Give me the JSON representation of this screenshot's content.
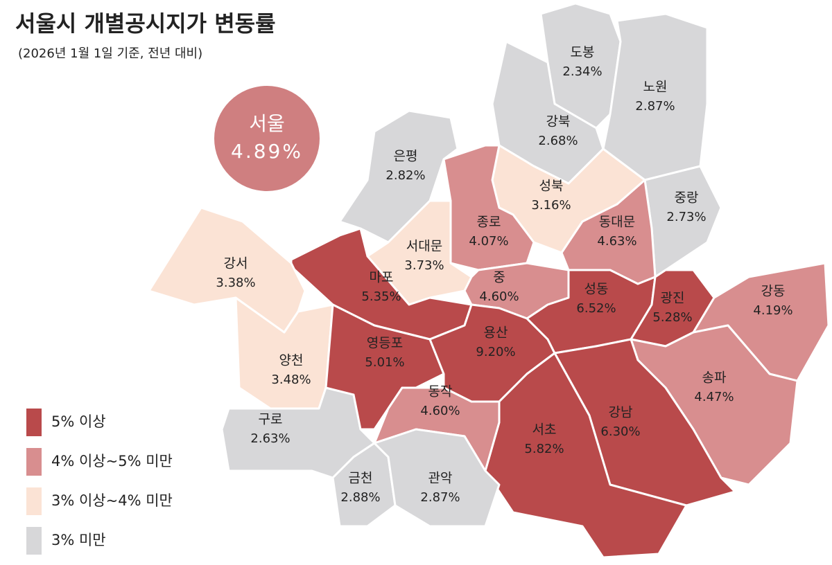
{
  "header": {
    "title": "서울시 개별공시지가 변동률",
    "subtitle": "(2026년 1월 1일 기준, 전년 대비)"
  },
  "summary": {
    "name": "서울",
    "value": "4.89%",
    "color": "#cf7f80"
  },
  "legend": [
    {
      "label": "5% 이상",
      "color": "#b94a4b"
    },
    {
      "label": "4% 이상~5% 미만",
      "color": "#d88e8f"
    },
    {
      "label": "3% 이상~4% 미만",
      "color": "#fbe3d5"
    },
    {
      "label": "3% 미만",
      "color": "#d7d7d9"
    }
  ],
  "districts": [
    {
      "name": "도봉",
      "value": "2.34%",
      "color": "#d7d7d9"
    },
    {
      "name": "노원",
      "value": "2.87%",
      "color": "#d7d7d9"
    },
    {
      "name": "강북",
      "value": "2.68%",
      "color": "#d7d7d9"
    },
    {
      "name": "은평",
      "value": "2.82%",
      "color": "#d7d7d9"
    },
    {
      "name": "성북",
      "value": "3.16%",
      "color": "#fbe3d5"
    },
    {
      "name": "종로",
      "value": "4.07%",
      "color": "#d88e8f"
    },
    {
      "name": "서대문",
      "value": "3.73%",
      "color": "#fbe3d5"
    },
    {
      "name": "중랑",
      "value": "2.73%",
      "color": "#d7d7d9"
    },
    {
      "name": "동대문",
      "value": "4.63%",
      "color": "#d88e8f"
    },
    {
      "name": "중",
      "value": "4.60%",
      "color": "#d88e8f"
    },
    {
      "name": "마포",
      "value": "5.35%",
      "color": "#b94a4b"
    },
    {
      "name": "강서",
      "value": "3.38%",
      "color": "#fbe3d5"
    },
    {
      "name": "양천",
      "value": "3.48%",
      "color": "#fbe3d5"
    },
    {
      "name": "구로",
      "value": "2.63%",
      "color": "#d7d7d9"
    },
    {
      "name": "영등포",
      "value": "5.01%",
      "color": "#b94a4b"
    },
    {
      "name": "용산",
      "value": "9.20%",
      "color": "#b94a4b"
    },
    {
      "name": "성동",
      "value": "6.52%",
      "color": "#b94a4b"
    },
    {
      "name": "광진",
      "value": "5.28%",
      "color": "#b94a4b"
    },
    {
      "name": "강동",
      "value": "4.19%",
      "color": "#d88e8f"
    },
    {
      "name": "송파",
      "value": "4.47%",
      "color": "#d88e8f"
    },
    {
      "name": "강남",
      "value": "6.30%",
      "color": "#b94a4b"
    },
    {
      "name": "서초",
      "value": "5.82%",
      "color": "#b94a4b"
    },
    {
      "name": "동작",
      "value": "4.60%",
      "color": "#d88e8f"
    },
    {
      "name": "금천",
      "value": "2.88%",
      "color": "#d7d7d9"
    },
    {
      "name": "관악",
      "value": "2.87%",
      "color": "#d7d7d9"
    }
  ]
}
